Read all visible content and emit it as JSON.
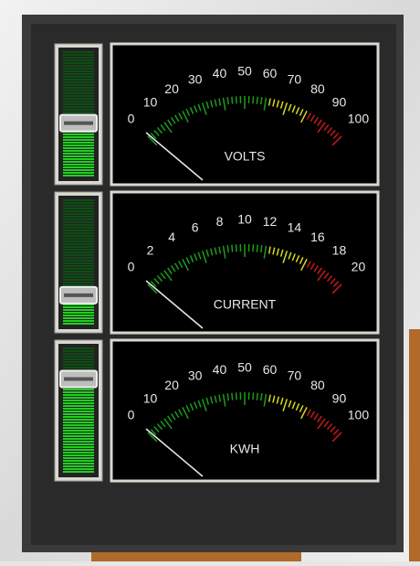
{
  "meters": [
    {
      "label": "VOLTS",
      "scale": [
        0,
        10,
        20,
        30,
        40,
        50,
        60,
        70,
        80,
        90,
        100
      ],
      "slider": 43
    },
    {
      "label": "CURRENT",
      "scale": [
        0,
        2,
        4,
        6,
        8,
        10,
        12,
        14,
        16,
        18,
        20
      ],
      "slider": 24
    },
    {
      "label": "KWH",
      "scale": [
        0,
        10,
        20,
        30,
        40,
        50,
        60,
        70,
        80,
        90,
        100
      ],
      "slider": 75
    }
  ]
}
